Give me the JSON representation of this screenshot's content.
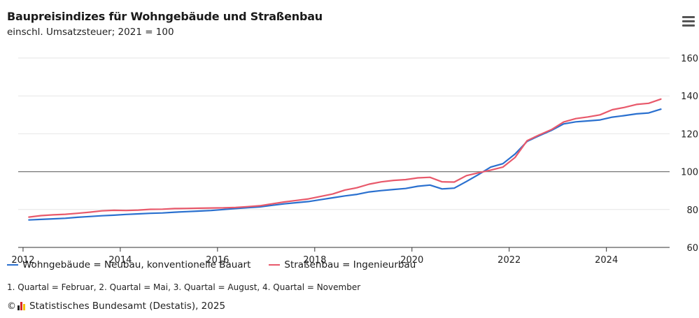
{
  "header": {
    "title": "Baupreisindizes für Wohngebäude und Straßenbau",
    "subtitle": "einschl. Umsatzsteuer; 2021 = 100",
    "menu_icon": "hamburger-menu-icon"
  },
  "chart_data": {
    "type": "line",
    "title": "Baupreisindizes für Wohngebäude und Straßenbau",
    "subtitle": "einschl. Umsatzsteuer; 2021 = 100",
    "xlim": [
      2011.9,
      2025.3
    ],
    "ylim": [
      60,
      160
    ],
    "x_ticks": [
      2012,
      2014,
      2016,
      2018,
      2020,
      2022,
      2024
    ],
    "x_tick_labels": [
      "2012",
      "2014",
      "2016",
      "2018",
      "2020",
      "2022",
      "2024"
    ],
    "y_ticks": [
      60,
      80,
      100,
      120,
      140,
      160
    ],
    "y_tick_labels": [
      "60",
      "80",
      "100",
      "120",
      "140",
      "160"
    ],
    "y_axis_side": "right",
    "reference_line": 100,
    "grid": true,
    "legend_position": "bottom-left",
    "series": [
      {
        "name": "Wohngebäude = Neubau, konventionelle Bauart",
        "color": "#2a70cf",
        "points": [
          [
            2012.12,
            74.5
          ],
          [
            2012.37,
            74.8
          ],
          [
            2012.62,
            75.1
          ],
          [
            2012.87,
            75.4
          ],
          [
            2013.12,
            75.9
          ],
          [
            2013.37,
            76.3
          ],
          [
            2013.62,
            76.7
          ],
          [
            2013.87,
            77.0
          ],
          [
            2014.12,
            77.4
          ],
          [
            2014.37,
            77.7
          ],
          [
            2014.62,
            78.0
          ],
          [
            2014.87,
            78.2
          ],
          [
            2015.12,
            78.6
          ],
          [
            2015.37,
            78.9
          ],
          [
            2015.62,
            79.2
          ],
          [
            2015.87,
            79.5
          ],
          [
            2016.12,
            80.0
          ],
          [
            2016.37,
            80.5
          ],
          [
            2016.62,
            81.0
          ],
          [
            2016.87,
            81.4
          ],
          [
            2017.12,
            82.2
          ],
          [
            2017.37,
            83.0
          ],
          [
            2017.62,
            83.6
          ],
          [
            2017.87,
            84.2
          ],
          [
            2018.12,
            85.2
          ],
          [
            2018.37,
            86.2
          ],
          [
            2018.62,
            87.2
          ],
          [
            2018.87,
            88.0
          ],
          [
            2019.12,
            89.3
          ],
          [
            2019.37,
            90.0
          ],
          [
            2019.62,
            90.6
          ],
          [
            2019.87,
            91.1
          ],
          [
            2020.12,
            92.3
          ],
          [
            2020.37,
            92.9
          ],
          [
            2020.62,
            90.9
          ],
          [
            2020.87,
            91.3
          ],
          [
            2021.12,
            94.8
          ],
          [
            2021.37,
            98.5
          ],
          [
            2021.62,
            102.4
          ],
          [
            2021.87,
            104.2
          ],
          [
            2022.12,
            109.3
          ],
          [
            2022.37,
            116.0
          ],
          [
            2022.62,
            119.0
          ],
          [
            2022.87,
            121.8
          ],
          [
            2023.12,
            125.2
          ],
          [
            2023.37,
            126.3
          ],
          [
            2023.62,
            126.8
          ],
          [
            2023.87,
            127.3
          ],
          [
            2024.12,
            128.8
          ],
          [
            2024.37,
            129.6
          ],
          [
            2024.62,
            130.5
          ],
          [
            2024.87,
            131.0
          ],
          [
            2025.12,
            133.0
          ]
        ]
      },
      {
        "name": "Straßenbau = Ingenieurbau",
        "color": "#e8596b",
        "points": [
          [
            2012.12,
            76.0
          ],
          [
            2012.37,
            76.8
          ],
          [
            2012.62,
            77.2
          ],
          [
            2012.87,
            77.5
          ],
          [
            2013.12,
            78.0
          ],
          [
            2013.37,
            78.6
          ],
          [
            2013.62,
            79.3
          ],
          [
            2013.87,
            79.6
          ],
          [
            2014.12,
            79.5
          ],
          [
            2014.37,
            79.7
          ],
          [
            2014.62,
            80.1
          ],
          [
            2014.87,
            80.2
          ],
          [
            2015.12,
            80.5
          ],
          [
            2015.37,
            80.6
          ],
          [
            2015.62,
            80.7
          ],
          [
            2015.87,
            80.8
          ],
          [
            2016.12,
            80.9
          ],
          [
            2016.37,
            81.1
          ],
          [
            2016.62,
            81.5
          ],
          [
            2016.87,
            82.0
          ],
          [
            2017.12,
            83.0
          ],
          [
            2017.37,
            84.0
          ],
          [
            2017.62,
            84.8
          ],
          [
            2017.87,
            85.6
          ],
          [
            2018.12,
            86.9
          ],
          [
            2018.37,
            88.2
          ],
          [
            2018.62,
            90.3
          ],
          [
            2018.87,
            91.5
          ],
          [
            2019.12,
            93.4
          ],
          [
            2019.37,
            94.6
          ],
          [
            2019.62,
            95.4
          ],
          [
            2019.87,
            95.8
          ],
          [
            2020.12,
            96.7
          ],
          [
            2020.37,
            97.0
          ],
          [
            2020.62,
            94.6
          ],
          [
            2020.87,
            94.5
          ],
          [
            2021.12,
            97.9
          ],
          [
            2021.37,
            99.4
          ],
          [
            2021.62,
            100.8
          ],
          [
            2021.87,
            102.4
          ],
          [
            2022.12,
            107.5
          ],
          [
            2022.37,
            116.4
          ],
          [
            2022.62,
            119.4
          ],
          [
            2022.87,
            122.2
          ],
          [
            2023.12,
            126.2
          ],
          [
            2023.37,
            128.0
          ],
          [
            2023.62,
            128.9
          ],
          [
            2023.87,
            130.0
          ],
          [
            2024.12,
            132.7
          ],
          [
            2024.37,
            133.9
          ],
          [
            2024.62,
            135.5
          ],
          [
            2024.87,
            136.1
          ],
          [
            2025.12,
            138.3
          ]
        ]
      }
    ]
  },
  "legend": {
    "items": [
      {
        "label": "Wohngebäude = Neubau, konventionelle Bauart",
        "color": "#2a70cf"
      },
      {
        "label": "Straßenbau = Ingenieurbau",
        "color": "#e8596b"
      }
    ]
  },
  "footnote": "1. Quartal = Februar, 2. Quartal = Mai, 3. Quartal = August, 4. Quartal = November",
  "credits": {
    "copyright_symbol": "©",
    "logo_icon": "destatis-logo-icon",
    "text": "Statistisches Bundesamt (Destatis), 2025"
  }
}
